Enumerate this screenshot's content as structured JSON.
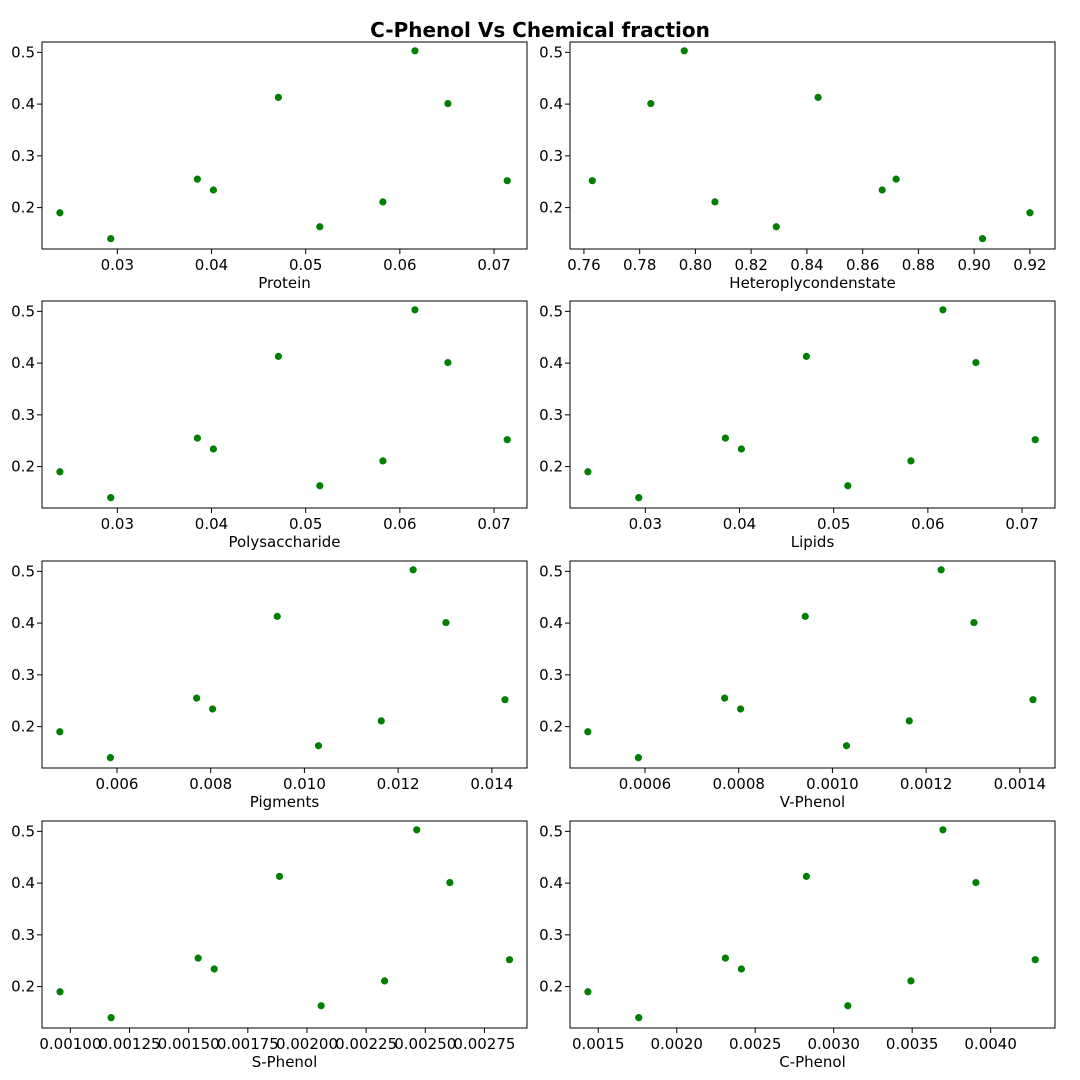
{
  "title": "C-Phenol Vs Chemical fraction",
  "colors": {
    "points": "#008000",
    "axes": "#000000",
    "background": "#ffffff"
  },
  "chart_data": [
    {
      "type": "scatter",
      "xlabel": "Protein",
      "xlim": [
        0.022,
        0.0735
      ],
      "ylim": [
        0.12,
        0.52
      ],
      "xticks": [
        {
          "v": 0.03,
          "label": "0.03"
        },
        {
          "v": 0.04,
          "label": "0.04"
        },
        {
          "v": 0.05,
          "label": "0.05"
        },
        {
          "v": 0.06,
          "label": "0.06"
        },
        {
          "v": 0.07,
          "label": "0.07"
        }
      ],
      "yticks": [
        {
          "v": 0.2,
          "label": "0.2"
        },
        {
          "v": 0.3,
          "label": "0.3"
        },
        {
          "v": 0.4,
          "label": "0.4"
        },
        {
          "v": 0.5,
          "label": "0.5"
        }
      ],
      "points": [
        [
          0.0239,
          0.19
        ],
        [
          0.0293,
          0.14
        ],
        [
          0.0385,
          0.255
        ],
        [
          0.0402,
          0.234
        ],
        [
          0.0471,
          0.413
        ],
        [
          0.0515,
          0.163
        ],
        [
          0.0582,
          0.211
        ],
        [
          0.0616,
          0.503
        ],
        [
          0.0651,
          0.401
        ],
        [
          0.0714,
          0.252
        ]
      ]
    },
    {
      "type": "scatter",
      "xlabel": "Heteroplycondenstate",
      "xlim": [
        0.755,
        0.929
      ],
      "ylim": [
        0.12,
        0.52
      ],
      "xticks": [
        {
          "v": 0.76,
          "label": "0.76"
        },
        {
          "v": 0.78,
          "label": "0.78"
        },
        {
          "v": 0.8,
          "label": "0.80"
        },
        {
          "v": 0.82,
          "label": "0.82"
        },
        {
          "v": 0.84,
          "label": "0.84"
        },
        {
          "v": 0.86,
          "label": "0.86"
        },
        {
          "v": 0.88,
          "label": "0.88"
        },
        {
          "v": 0.9,
          "label": "0.90"
        },
        {
          "v": 0.92,
          "label": "0.92"
        }
      ],
      "yticks": [
        {
          "v": 0.2,
          "label": "0.2"
        },
        {
          "v": 0.3,
          "label": "0.3"
        },
        {
          "v": 0.4,
          "label": "0.4"
        },
        {
          "v": 0.5,
          "label": "0.5"
        }
      ],
      "points": [
        [
          0.763,
          0.252
        ],
        [
          0.784,
          0.401
        ],
        [
          0.796,
          0.503
        ],
        [
          0.807,
          0.211
        ],
        [
          0.829,
          0.163
        ],
        [
          0.844,
          0.413
        ],
        [
          0.867,
          0.234
        ],
        [
          0.872,
          0.255
        ],
        [
          0.903,
          0.14
        ],
        [
          0.92,
          0.19
        ]
      ]
    },
    {
      "type": "scatter",
      "xlabel": "Polysaccharide",
      "xlim": [
        0.022,
        0.0735
      ],
      "ylim": [
        0.12,
        0.52
      ],
      "xticks": [
        {
          "v": 0.03,
          "label": "0.03"
        },
        {
          "v": 0.04,
          "label": "0.04"
        },
        {
          "v": 0.05,
          "label": "0.05"
        },
        {
          "v": 0.06,
          "label": "0.06"
        },
        {
          "v": 0.07,
          "label": "0.07"
        }
      ],
      "yticks": [
        {
          "v": 0.2,
          "label": "0.2"
        },
        {
          "v": 0.3,
          "label": "0.3"
        },
        {
          "v": 0.4,
          "label": "0.4"
        },
        {
          "v": 0.5,
          "label": "0.5"
        }
      ],
      "points": [
        [
          0.0239,
          0.19
        ],
        [
          0.0293,
          0.14
        ],
        [
          0.0385,
          0.255
        ],
        [
          0.0402,
          0.234
        ],
        [
          0.0471,
          0.413
        ],
        [
          0.0515,
          0.163
        ],
        [
          0.0582,
          0.211
        ],
        [
          0.0616,
          0.503
        ],
        [
          0.0651,
          0.401
        ],
        [
          0.0714,
          0.252
        ]
      ]
    },
    {
      "type": "scatter",
      "xlabel": "Lipids",
      "xlim": [
        0.022,
        0.0735
      ],
      "ylim": [
        0.12,
        0.52
      ],
      "xticks": [
        {
          "v": 0.03,
          "label": "0.03"
        },
        {
          "v": 0.04,
          "label": "0.04"
        },
        {
          "v": 0.05,
          "label": "0.05"
        },
        {
          "v": 0.06,
          "label": "0.06"
        },
        {
          "v": 0.07,
          "label": "0.07"
        }
      ],
      "yticks": [
        {
          "v": 0.2,
          "label": "0.2"
        },
        {
          "v": 0.3,
          "label": "0.3"
        },
        {
          "v": 0.4,
          "label": "0.4"
        },
        {
          "v": 0.5,
          "label": "0.5"
        }
      ],
      "points": [
        [
          0.0239,
          0.19
        ],
        [
          0.0293,
          0.14
        ],
        [
          0.0385,
          0.255
        ],
        [
          0.0402,
          0.234
        ],
        [
          0.0471,
          0.413
        ],
        [
          0.0515,
          0.163
        ],
        [
          0.0582,
          0.211
        ],
        [
          0.0616,
          0.503
        ],
        [
          0.0651,
          0.401
        ],
        [
          0.0714,
          0.252
        ]
      ]
    },
    {
      "type": "scatter",
      "xlabel": "Pigments",
      "xlim": [
        0.0044,
        0.01475
      ],
      "ylim": [
        0.12,
        0.52
      ],
      "xticks": [
        {
          "v": 0.006,
          "label": "0.006"
        },
        {
          "v": 0.008,
          "label": "0.008"
        },
        {
          "v": 0.01,
          "label": "0.010"
        },
        {
          "v": 0.012,
          "label": "0.012"
        },
        {
          "v": 0.014,
          "label": "0.014"
        }
      ],
      "yticks": [
        {
          "v": 0.2,
          "label": "0.2"
        },
        {
          "v": 0.3,
          "label": "0.3"
        },
        {
          "v": 0.4,
          "label": "0.4"
        },
        {
          "v": 0.5,
          "label": "0.5"
        }
      ],
      "points": [
        [
          0.00478,
          0.19
        ],
        [
          0.00586,
          0.14
        ],
        [
          0.0077,
          0.255
        ],
        [
          0.00804,
          0.234
        ],
        [
          0.00942,
          0.413
        ],
        [
          0.0103,
          0.163
        ],
        [
          0.01164,
          0.211
        ],
        [
          0.01232,
          0.503
        ],
        [
          0.01302,
          0.401
        ],
        [
          0.01428,
          0.252
        ]
      ]
    },
    {
      "type": "scatter",
      "xlabel": "V-Phenol",
      "xlim": [
        0.00044,
        0.001475
      ],
      "ylim": [
        0.12,
        0.52
      ],
      "xticks": [
        {
          "v": 0.0006,
          "label": "0.0006"
        },
        {
          "v": 0.0008,
          "label": "0.0008"
        },
        {
          "v": 0.001,
          "label": "0.0010"
        },
        {
          "v": 0.0012,
          "label": "0.0012"
        },
        {
          "v": 0.0014,
          "label": "0.0014"
        }
      ],
      "yticks": [
        {
          "v": 0.2,
          "label": "0.2"
        },
        {
          "v": 0.3,
          "label": "0.3"
        },
        {
          "v": 0.4,
          "label": "0.4"
        },
        {
          "v": 0.5,
          "label": "0.5"
        }
      ],
      "points": [
        [
          0.000478,
          0.19
        ],
        [
          0.000586,
          0.14
        ],
        [
          0.00077,
          0.255
        ],
        [
          0.000804,
          0.234
        ],
        [
          0.000942,
          0.413
        ],
        [
          0.00103,
          0.163
        ],
        [
          0.001164,
          0.211
        ],
        [
          0.001232,
          0.503
        ],
        [
          0.001302,
          0.401
        ],
        [
          0.001428,
          0.252
        ]
      ]
    },
    {
      "type": "scatter",
      "xlabel": "S-Phenol",
      "xlim": [
        0.00088,
        0.00293
      ],
      "ylim": [
        0.12,
        0.52
      ],
      "xticks": [
        {
          "v": 0.001,
          "label": "0.00100"
        },
        {
          "v": 0.00125,
          "label": "0.00125"
        },
        {
          "v": 0.0015,
          "label": "0.00150"
        },
        {
          "v": 0.00175,
          "label": "0.00175"
        },
        {
          "v": 0.002,
          "label": "0.00200"
        },
        {
          "v": 0.00225,
          "label": "0.00225"
        },
        {
          "v": 0.0025,
          "label": "0.00250"
        },
        {
          "v": 0.00275,
          "label": "0.00275"
        }
      ],
      "yticks": [
        {
          "v": 0.2,
          "label": "0.2"
        },
        {
          "v": 0.3,
          "label": "0.3"
        },
        {
          "v": 0.4,
          "label": "0.4"
        },
        {
          "v": 0.5,
          "label": "0.5"
        }
      ],
      "points": [
        [
          0.000956,
          0.19
        ],
        [
          0.001172,
          0.14
        ],
        [
          0.00154,
          0.255
        ],
        [
          0.001608,
          0.234
        ],
        [
          0.001884,
          0.413
        ],
        [
          0.00206,
          0.163
        ],
        [
          0.002328,
          0.211
        ],
        [
          0.002464,
          0.503
        ],
        [
          0.002604,
          0.401
        ],
        [
          0.002856,
          0.252
        ]
      ]
    },
    {
      "type": "scatter",
      "xlabel": "C-Phenol",
      "xlim": [
        0.00132,
        0.00441
      ],
      "ylim": [
        0.12,
        0.52
      ],
      "xticks": [
        {
          "v": 0.0015,
          "label": "0.0015"
        },
        {
          "v": 0.002,
          "label": "0.0020"
        },
        {
          "v": 0.0025,
          "label": "0.0025"
        },
        {
          "v": 0.003,
          "label": "0.0030"
        },
        {
          "v": 0.0035,
          "label": "0.0035"
        },
        {
          "v": 0.004,
          "label": "0.0040"
        }
      ],
      "yticks": [
        {
          "v": 0.2,
          "label": "0.2"
        },
        {
          "v": 0.3,
          "label": "0.3"
        },
        {
          "v": 0.4,
          "label": "0.4"
        },
        {
          "v": 0.5,
          "label": "0.5"
        }
      ],
      "points": [
        [
          0.001434,
          0.19
        ],
        [
          0.001758,
          0.14
        ],
        [
          0.00231,
          0.255
        ],
        [
          0.002412,
          0.234
        ],
        [
          0.002826,
          0.413
        ],
        [
          0.00309,
          0.163
        ],
        [
          0.003492,
          0.211
        ],
        [
          0.003696,
          0.503
        ],
        [
          0.003906,
          0.401
        ],
        [
          0.004284,
          0.252
        ]
      ]
    }
  ]
}
